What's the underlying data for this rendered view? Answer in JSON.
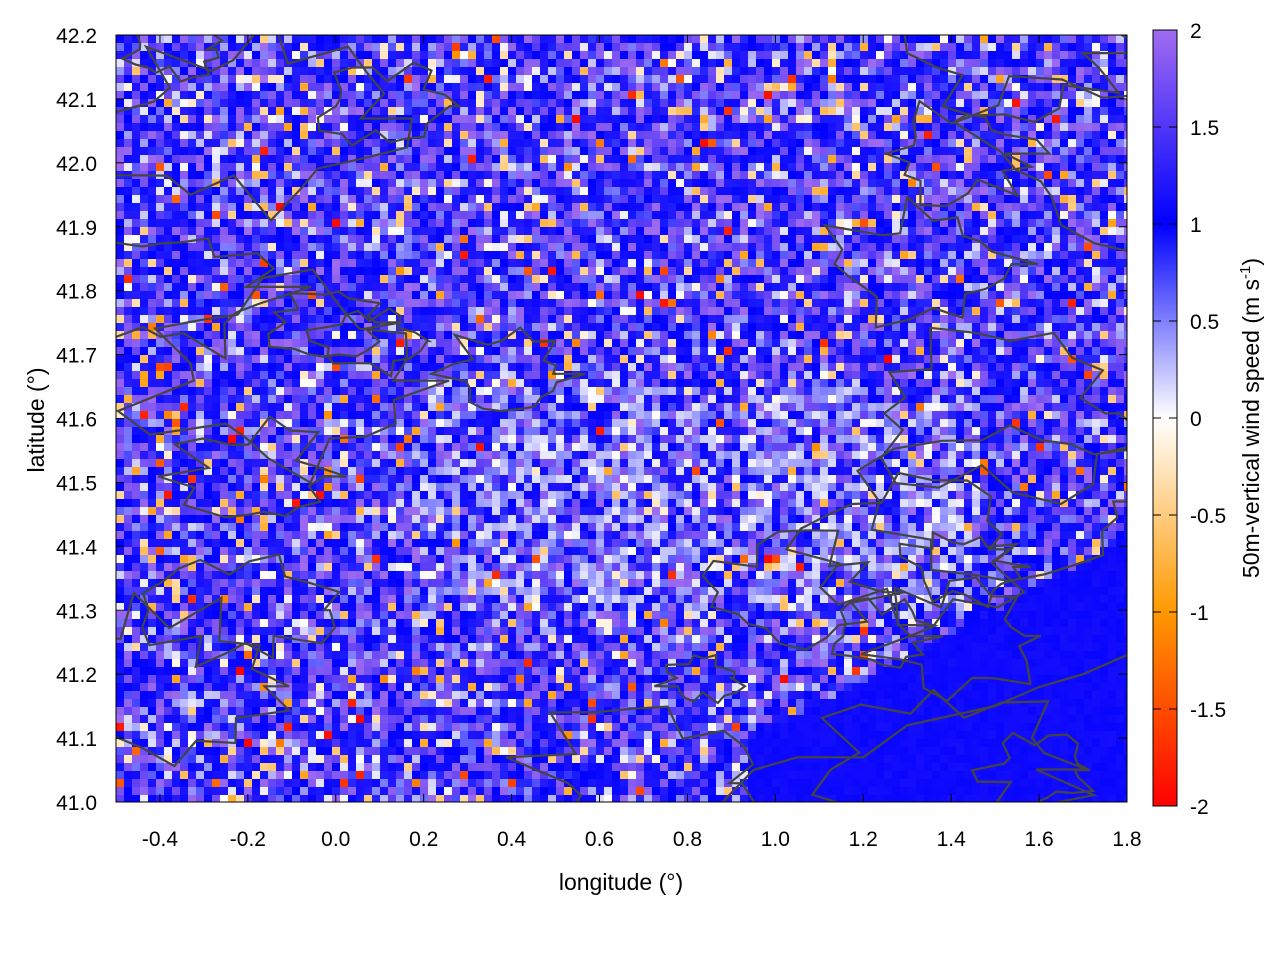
{
  "chart_data": {
    "type": "heatmap",
    "title": "",
    "xlabel": "longitude (°)",
    "ylabel": "latitude (°)",
    "colorbar_label_main": "50m-vertical wind speed (m s",
    "colorbar_label_sup": "-1",
    "colorbar_label_end": ")",
    "xlim": [
      -0.5,
      1.8
    ],
    "ylim": [
      41.0,
      42.2
    ],
    "clim": [
      -2,
      2
    ],
    "x_ticks": [
      {
        "value": -0.4,
        "label": "-0.4"
      },
      {
        "value": -0.2,
        "label": "-0.2"
      },
      {
        "value": 0.0,
        "label": "0.0"
      },
      {
        "value": 0.2,
        "label": "0.2"
      },
      {
        "value": 0.4,
        "label": "0.4"
      },
      {
        "value": 0.6,
        "label": "0.6"
      },
      {
        "value": 0.8,
        "label": "0.8"
      },
      {
        "value": 1.0,
        "label": "1.0"
      },
      {
        "value": 1.2,
        "label": "1.2"
      },
      {
        "value": 1.4,
        "label": "1.4"
      },
      {
        "value": 1.6,
        "label": "1.6"
      },
      {
        "value": 1.8,
        "label": "1.8"
      }
    ],
    "y_ticks": [
      {
        "value": 41.0,
        "label": "41.0"
      },
      {
        "value": 41.1,
        "label": "41.1"
      },
      {
        "value": 41.2,
        "label": "41.2"
      },
      {
        "value": 41.3,
        "label": "41.3"
      },
      {
        "value": 41.4,
        "label": "41.4"
      },
      {
        "value": 41.5,
        "label": "41.5"
      },
      {
        "value": 41.6,
        "label": "41.6"
      },
      {
        "value": 41.7,
        "label": "41.7"
      },
      {
        "value": 41.8,
        "label": "41.8"
      },
      {
        "value": 41.9,
        "label": "41.9"
      },
      {
        "value": 42.0,
        "label": "42.0"
      },
      {
        "value": 42.1,
        "label": "42.1"
      },
      {
        "value": 42.2,
        "label": "42.2"
      }
    ],
    "colorbar_ticks": [
      {
        "value": 2,
        "label": "2"
      },
      {
        "value": 1.5,
        "label": "1.5"
      },
      {
        "value": 1,
        "label": "1"
      },
      {
        "value": 0.5,
        "label": "0.5"
      },
      {
        "value": 0,
        "label": "0"
      },
      {
        "value": -0.5,
        "label": "-0.5"
      },
      {
        "value": -1,
        "label": "-1"
      },
      {
        "value": -1.5,
        "label": "-1.5"
      },
      {
        "value": -2,
        "label": "-2"
      }
    ],
    "colormap": [
      {
        "value": -2,
        "color": "#ff0000"
      },
      {
        "value": -1,
        "color": "#ff9900"
      },
      {
        "value": 0,
        "color": "#ffffff"
      },
      {
        "value": 1,
        "color": "#0000ff"
      },
      {
        "value": 2,
        "color": "#a06cf0"
      }
    ],
    "contour_color": "#444444",
    "sea_region_color": "#0a14f0"
  }
}
